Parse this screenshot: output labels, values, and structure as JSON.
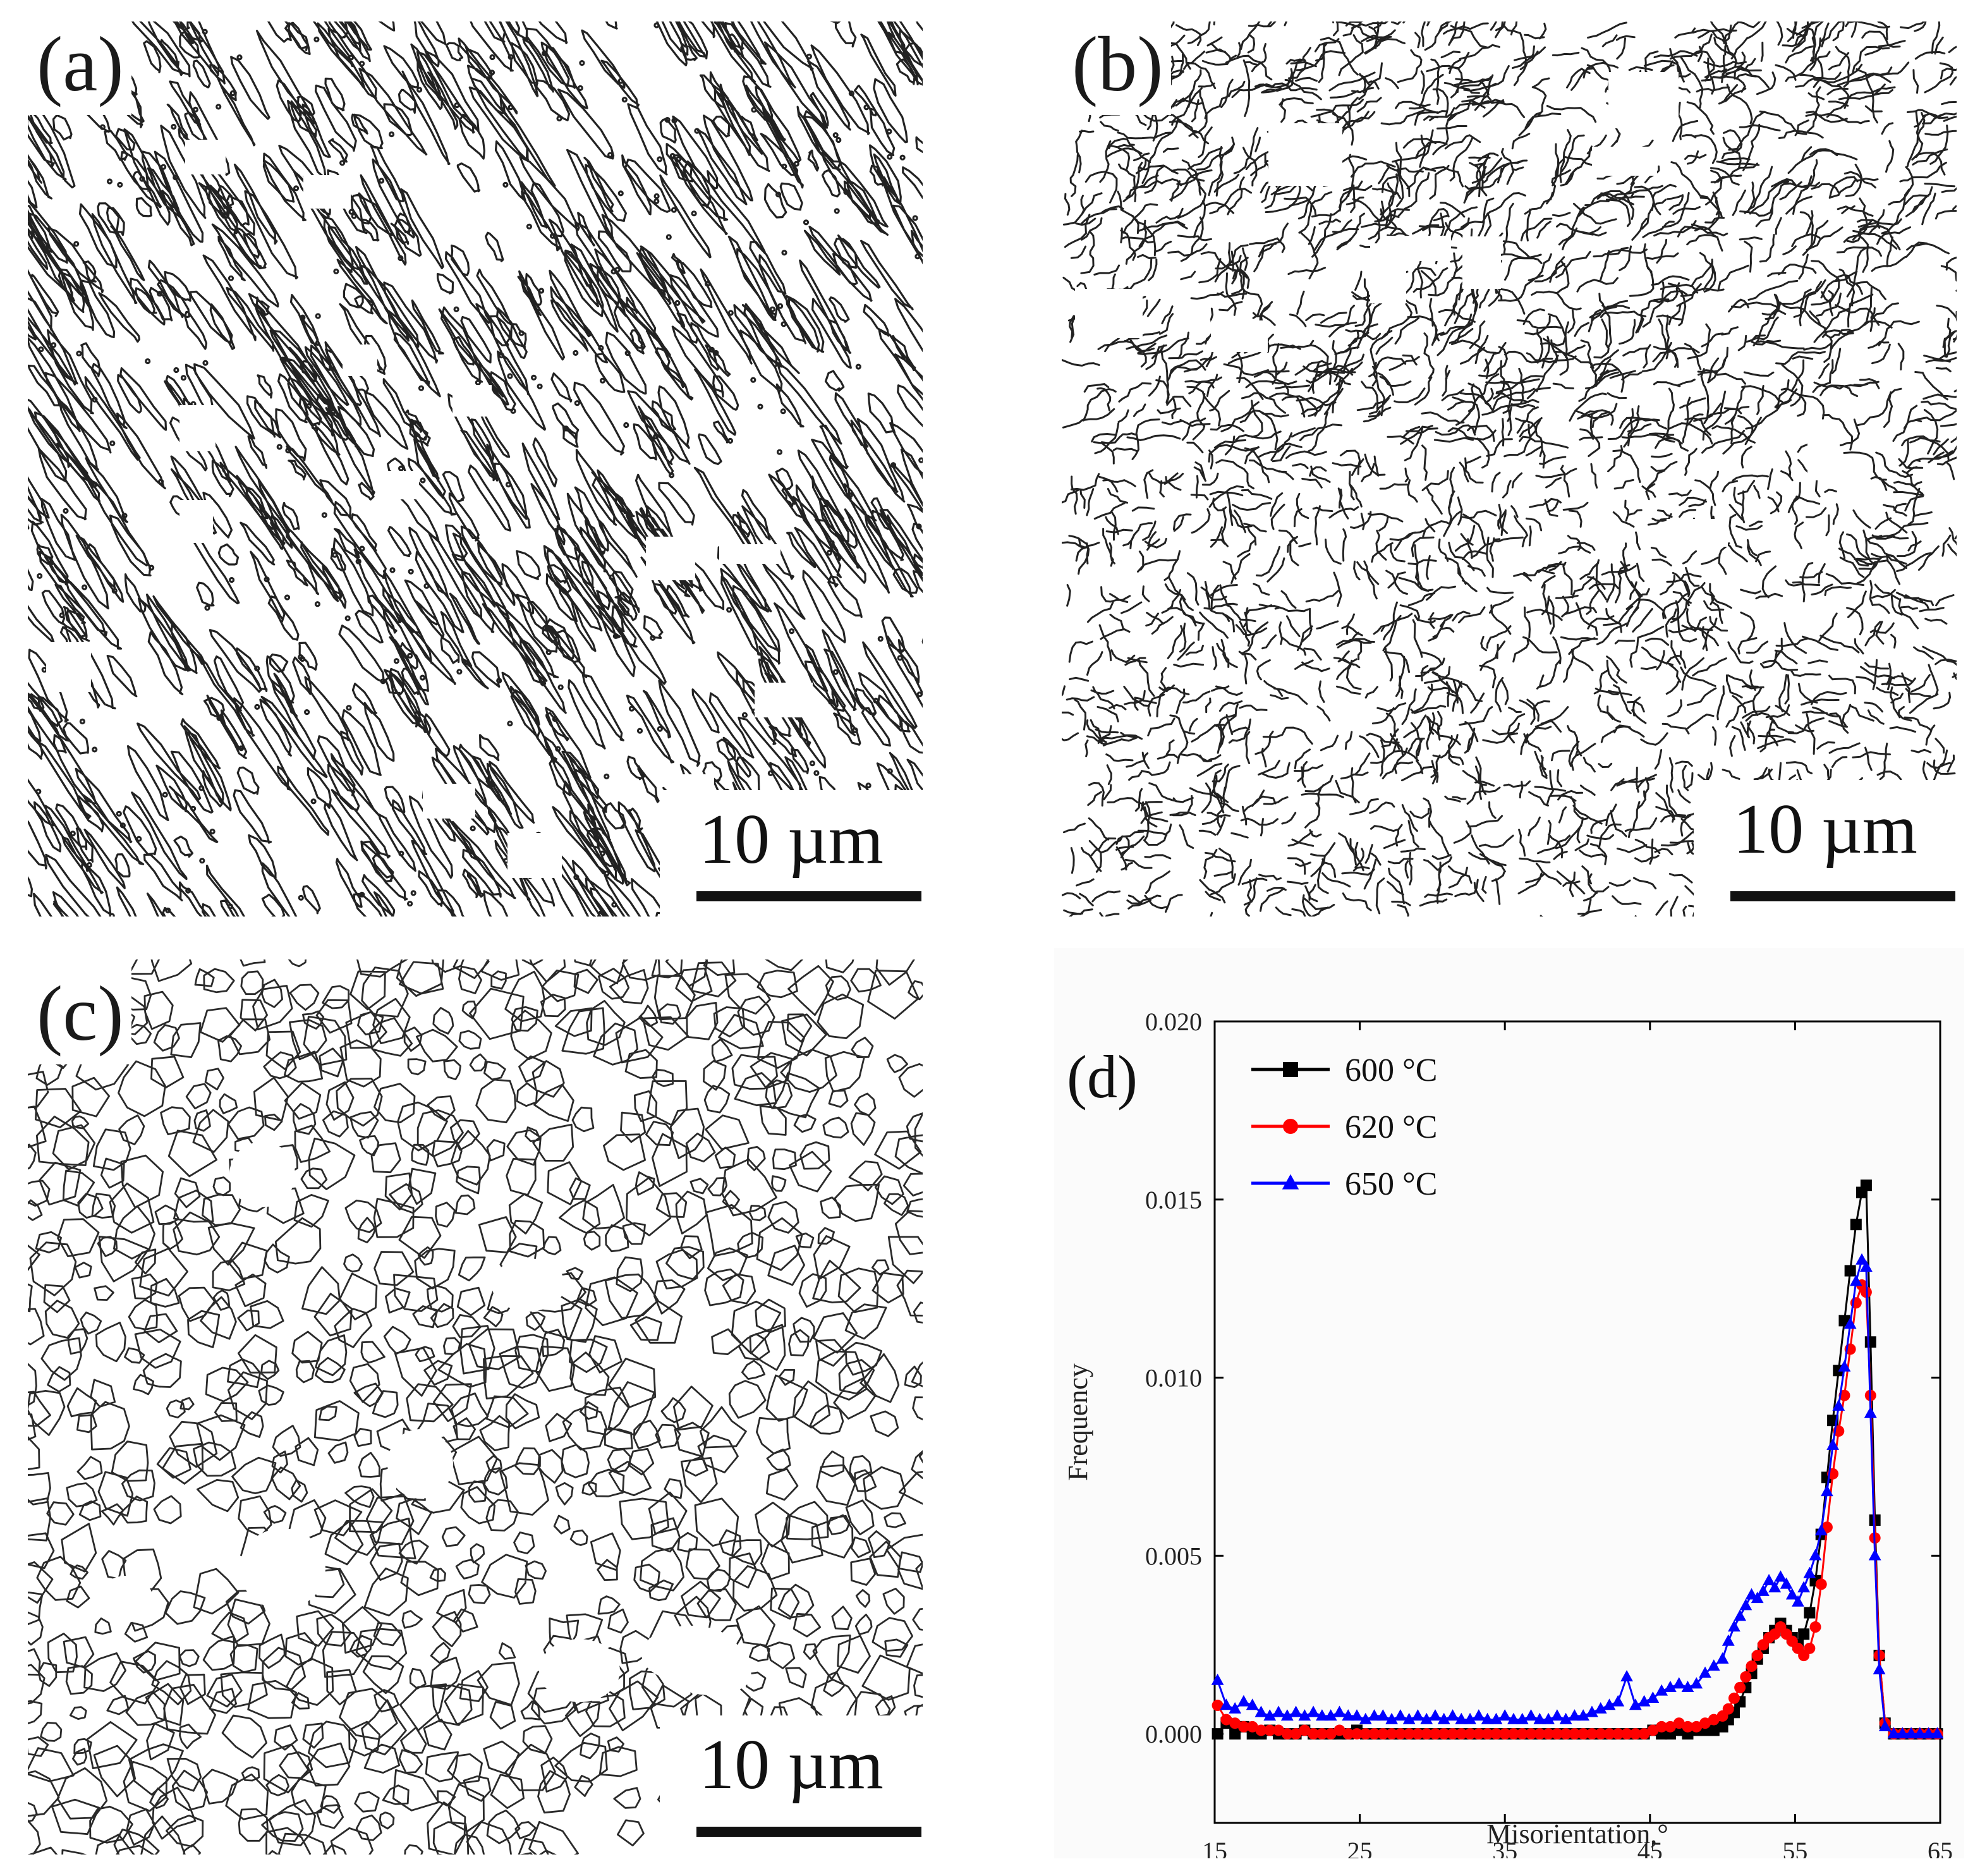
{
  "figure": {
    "panels": [
      {
        "label": "(a)",
        "scale_bar": "10 µm",
        "texture": "elongated grain boundaries oriented diagonally"
      },
      {
        "label": "(b)",
        "scale_bar": "10 µm",
        "texture": "fragmented mixed grain boundaries"
      },
      {
        "label": "(c)",
        "scale_bar": "10 µm",
        "texture": "equiaxed polygonal grain network"
      }
    ],
    "chart_label": "(d)"
  },
  "chart_data": {
    "type": "line",
    "xlabel": "Misorientation,°",
    "ylabel": "Frequency",
    "xlim": [
      15,
      65
    ],
    "ylim": [
      -0.0025,
      0.02
    ],
    "xticks": [
      15,
      25,
      35,
      45,
      55,
      65
    ],
    "yticks": [
      0.0,
      0.005,
      0.01,
      0.015,
      0.02
    ],
    "ytick_labels": [
      "0.000",
      "0.005",
      "0.010",
      "0.015",
      "0.020"
    ],
    "legend_position": "top-left",
    "series": [
      {
        "name": "600 °C",
        "color": "#000000",
        "marker": "square",
        "x": [
          15.2,
          15.8,
          16.4,
          17,
          17.6,
          18.2,
          18.8,
          19.4,
          20,
          20.6,
          21.2,
          21.8,
          22.4,
          23,
          23.6,
          24.2,
          24.8,
          25.4,
          26,
          26.6,
          27.2,
          27.8,
          28.4,
          29,
          29.6,
          30.2,
          30.8,
          31.4,
          32,
          32.6,
          33.2,
          33.8,
          34.4,
          35,
          35.6,
          36.2,
          36.8,
          37.4,
          38,
          38.6,
          39.2,
          39.8,
          40.4,
          41,
          41.6,
          42.2,
          42.8,
          43.4,
          44,
          44.6,
          45.2,
          45.8,
          46.4,
          47,
          47.6,
          48.2,
          48.8,
          49.4,
          50,
          50.4,
          50.8,
          51.2,
          51.6,
          52,
          52.4,
          52.8,
          53.2,
          53.6,
          54,
          54.4,
          54.8,
          55.2,
          55.6,
          56,
          56.4,
          56.8,
          57.2,
          57.6,
          58,
          58.4,
          58.8,
          59.2,
          59.6,
          59.9,
          60.2,
          60.5,
          60.8,
          61.2,
          61.8,
          62.4,
          63,
          63.6,
          64.2,
          64.8
        ],
        "y": [
          0.0,
          0.0003,
          0.0,
          0.0002,
          0.0,
          0.0,
          0.0001,
          0.0,
          0.0,
          0.0,
          0.0001,
          0.0,
          0.0,
          0.0,
          0.0,
          0.0,
          0.0001,
          0.0,
          0.0,
          0.0,
          0.0,
          0.0,
          0.0,
          0.0,
          0.0,
          0.0,
          0.0,
          0.0,
          0.0,
          0.0,
          0.0,
          0.0,
          0.0,
          0.0,
          0.0,
          0.0,
          0.0,
          0.0,
          0.0,
          0.0,
          0.0,
          0.0,
          0.0,
          0.0,
          0.0,
          0.0,
          0.0,
          0.0,
          0.0,
          0.0,
          0.0001,
          0.0,
          0.0,
          0.0001,
          0.0,
          0.0001,
          0.0001,
          0.0001,
          0.0002,
          0.0004,
          0.0006,
          0.0009,
          0.0013,
          0.0017,
          0.0021,
          0.0024,
          0.0027,
          0.0029,
          0.0031,
          0.0029,
          0.0027,
          0.0025,
          0.0028,
          0.0034,
          0.0043,
          0.0056,
          0.0072,
          0.0088,
          0.0102,
          0.0116,
          0.013,
          0.0143,
          0.0152,
          0.0154,
          0.011,
          0.006,
          0.0022,
          0.0003,
          0.0,
          0.0,
          0.0,
          0.0,
          0.0,
          0.0
        ]
      },
      {
        "name": "620 °C",
        "color": "#ff0000",
        "marker": "circle",
        "x": [
          15.2,
          15.8,
          16.4,
          17,
          17.6,
          18.2,
          18.8,
          19.4,
          20,
          20.6,
          21.2,
          21.8,
          22.4,
          23,
          23.6,
          24.2,
          24.8,
          25.4,
          26,
          26.6,
          27.2,
          27.8,
          28.4,
          29,
          29.6,
          30.2,
          30.8,
          31.4,
          32,
          32.6,
          33.2,
          33.8,
          34.4,
          35,
          35.6,
          36.2,
          36.8,
          37.4,
          38,
          38.6,
          39.2,
          39.8,
          40.4,
          41,
          41.6,
          42.2,
          42.8,
          43.4,
          44,
          44.6,
          45.2,
          45.8,
          46.4,
          47,
          47.6,
          48.2,
          48.8,
          49.4,
          50,
          50.4,
          50.8,
          51.2,
          51.6,
          52,
          52.4,
          52.8,
          53.2,
          53.6,
          54,
          54.4,
          54.8,
          55.2,
          55.6,
          56,
          56.4,
          56.8,
          57.2,
          57.6,
          58,
          58.4,
          58.8,
          59.2,
          59.6,
          59.9,
          60.2,
          60.5,
          60.8,
          61.2,
          61.8,
          62.4,
          63,
          63.6,
          64.2,
          64.8
        ],
        "y": [
          0.0008,
          0.0004,
          0.0003,
          0.0002,
          0.0002,
          0.0001,
          0.0001,
          0.0001,
          0.0,
          0.0,
          0.0001,
          0.0,
          0.0,
          0.0,
          0.0001,
          0.0,
          0.0,
          0.0,
          0.0,
          0.0,
          0.0,
          0.0,
          0.0,
          0.0,
          0.0,
          0.0,
          0.0,
          0.0,
          0.0,
          0.0,
          0.0,
          0.0,
          0.0,
          0.0,
          0.0,
          0.0,
          0.0,
          0.0,
          0.0,
          0.0,
          0.0,
          0.0,
          0.0,
          0.0,
          0.0,
          0.0,
          0.0,
          0.0,
          0.0,
          0.0,
          0.0001,
          0.0002,
          0.0002,
          0.0003,
          0.0002,
          0.0002,
          0.0003,
          0.0004,
          0.0005,
          0.0007,
          0.001,
          0.0013,
          0.0016,
          0.0019,
          0.0022,
          0.0025,
          0.0027,
          0.0028,
          0.003,
          0.0028,
          0.0026,
          0.0024,
          0.0022,
          0.0024,
          0.003,
          0.0042,
          0.0058,
          0.0073,
          0.0085,
          0.0095,
          0.0108,
          0.0121,
          0.0126,
          0.0124,
          0.0095,
          0.0055,
          0.0022,
          0.0003,
          0.0,
          0.0,
          0.0,
          0.0,
          0.0,
          0.0
        ]
      },
      {
        "name": "650 °C",
        "color": "#0000ff",
        "marker": "triangle",
        "x": [
          15.2,
          15.8,
          16.4,
          17,
          17.6,
          18.2,
          18.8,
          19.4,
          20,
          20.6,
          21.2,
          21.8,
          22.4,
          23,
          23.6,
          24.2,
          24.8,
          25.4,
          26,
          26.6,
          27.2,
          27.8,
          28.4,
          29,
          29.6,
          30.2,
          30.8,
          31.4,
          32,
          32.6,
          33.2,
          33.8,
          34.4,
          35,
          35.6,
          36.2,
          36.8,
          37.4,
          38,
          38.6,
          39.2,
          39.8,
          40.4,
          41,
          41.6,
          42.2,
          42.8,
          43.4,
          44,
          44.6,
          45.2,
          45.8,
          46.4,
          47,
          47.6,
          48.2,
          48.8,
          49.4,
          50,
          50.4,
          50.8,
          51.2,
          51.6,
          52,
          52.4,
          52.8,
          53.2,
          53.6,
          54,
          54.4,
          54.8,
          55.2,
          55.6,
          56,
          56.4,
          56.8,
          57.2,
          57.6,
          58,
          58.4,
          58.8,
          59.2,
          59.6,
          59.9,
          60.2,
          60.5,
          60.8,
          61.2,
          61.8,
          62.4,
          63,
          63.6,
          64.2,
          64.8
        ],
        "y": [
          0.0015,
          0.0008,
          0.0007,
          0.0009,
          0.0008,
          0.0006,
          0.0005,
          0.0006,
          0.0005,
          0.0006,
          0.0005,
          0.0006,
          0.0005,
          0.0005,
          0.0006,
          0.0005,
          0.0005,
          0.0004,
          0.0005,
          0.0005,
          0.0004,
          0.0005,
          0.0004,
          0.0005,
          0.0004,
          0.0005,
          0.0004,
          0.0005,
          0.0004,
          0.0004,
          0.0005,
          0.0004,
          0.0004,
          0.0005,
          0.0004,
          0.0004,
          0.0005,
          0.0004,
          0.0004,
          0.0005,
          0.0004,
          0.0005,
          0.0005,
          0.0006,
          0.0007,
          0.0008,
          0.0009,
          0.0016,
          0.0008,
          0.0009,
          0.001,
          0.0012,
          0.0013,
          0.0014,
          0.0013,
          0.0014,
          0.0017,
          0.0019,
          0.0021,
          0.0026,
          0.003,
          0.0033,
          0.0036,
          0.0039,
          0.0038,
          0.004,
          0.0043,
          0.0041,
          0.0044,
          0.0042,
          0.0039,
          0.0037,
          0.0041,
          0.0045,
          0.005,
          0.0057,
          0.0068,
          0.0081,
          0.0092,
          0.0103,
          0.0115,
          0.0127,
          0.0133,
          0.0131,
          0.009,
          0.005,
          0.0018,
          0.0002,
          0.0,
          0.0,
          0.0,
          0.0,
          0.0,
          0.0
        ]
      }
    ]
  }
}
